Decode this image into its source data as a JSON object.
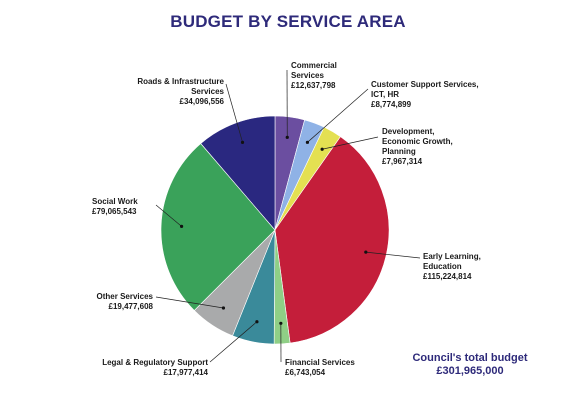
{
  "chart_data": {
    "type": "pie",
    "title": "BUDGET BY SERVICE AREA",
    "slices": [
      {
        "label": "Commercial Services",
        "value_label": "£12,637,798",
        "value": 12637798,
        "color": "#6b4ea0"
      },
      {
        "label": "Customer Support Services, ICT, HR",
        "value_label": "£8,774,899",
        "value": 8774899,
        "color": "#8fb2e6"
      },
      {
        "label": "Development, Economic Growth, Planning",
        "value_label": "£7,967,314",
        "value": 7967314,
        "color": "#e4e052"
      },
      {
        "label": "Early Learning, Education",
        "value_label": "£115,224,814",
        "value": 115224814,
        "color": "#c41e3a"
      },
      {
        "label": "Financial Services",
        "value_label": "£6,743,054",
        "value": 6743054,
        "color": "#8fcf86"
      },
      {
        "label": "Legal & Regulatory Support",
        "value_label": "£17,977,414",
        "value": 17977414,
        "color": "#3a8a9a"
      },
      {
        "label": "Other Services",
        "value_label": "£19,477,608",
        "value": 19477608,
        "color": "#a9aaab"
      },
      {
        "label": "Social Work",
        "value_label": "£79,065,543",
        "value": 79065543,
        "color": "#3aa25a"
      },
      {
        "label": "Roads & Infrastructure Services",
        "value_label": "£34,096,556",
        "value": 34096556,
        "color": "#2a2880"
      }
    ]
  },
  "total": {
    "label": "Council's total budget",
    "value": "£301,965,000"
  }
}
